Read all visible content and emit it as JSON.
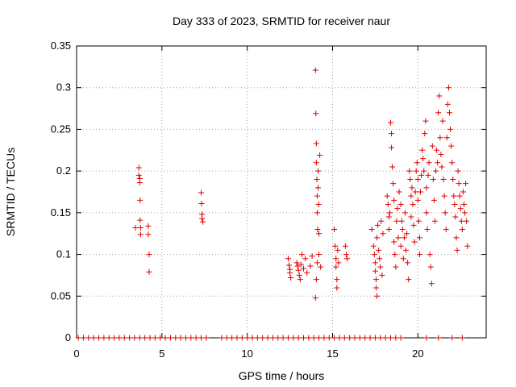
{
  "chart_data": {
    "type": "scatter",
    "title": "Day 333 of 2023, SRMTID for receiver naur",
    "xlabel": "GPS time / hours",
    "ylabel": "SRMTID / TECUs",
    "xlim": [
      0,
      24
    ],
    "ylim": [
      0,
      0.35
    ],
    "x_ticks": [
      0,
      5,
      10,
      15,
      20
    ],
    "x_tick_labels": [
      "0",
      "5",
      "10",
      "15",
      "20"
    ],
    "y_ticks": [
      0,
      0.05,
      0.1,
      0.15,
      0.2,
      0.25,
      0.3,
      0.35
    ],
    "y_tick_labels": [
      "0",
      "0.05",
      "0.1",
      "0.15",
      "0.2",
      "0.25",
      "0.3",
      "0.35"
    ],
    "grid": true,
    "marker": "+",
    "color": "#dd0000",
    "series": [
      {
        "name": "SRMTID",
        "points": [
          [
            3.45,
            0.132
          ],
          [
            3.65,
            0.204
          ],
          [
            3.65,
            0.195
          ],
          [
            3.7,
            0.191
          ],
          [
            3.7,
            0.186
          ],
          [
            3.72,
            0.165
          ],
          [
            3.72,
            0.141
          ],
          [
            3.75,
            0.132
          ],
          [
            3.75,
            0.124
          ],
          [
            4.2,
            0.134
          ],
          [
            4.2,
            0.124
          ],
          [
            4.25,
            0.1
          ],
          [
            4.25,
            0.079
          ],
          [
            7.3,
            0.174
          ],
          [
            7.32,
            0.161
          ],
          [
            7.35,
            0.148
          ],
          [
            7.35,
            0.143
          ],
          [
            7.4,
            0.139
          ],
          [
            12.4,
            0.095
          ],
          [
            12.45,
            0.087
          ],
          [
            12.5,
            0.082
          ],
          [
            12.5,
            0.078
          ],
          [
            12.55,
            0.072
          ],
          [
            12.9,
            0.09
          ],
          [
            12.95,
            0.086
          ],
          [
            13.0,
            0.081
          ],
          [
            13.05,
            0.075
          ],
          [
            13.1,
            0.07
          ],
          [
            13.15,
            0.088
          ],
          [
            13.2,
            0.1
          ],
          [
            13.3,
            0.083
          ],
          [
            13.4,
            0.095
          ],
          [
            13.5,
            0.078
          ],
          [
            13.7,
            0.086
          ],
          [
            13.8,
            0.098
          ],
          [
            14.0,
            0.321
          ],
          [
            14.02,
            0.269
          ],
          [
            14.05,
            0.233
          ],
          [
            14.05,
            0.21
          ],
          [
            14.08,
            0.19
          ],
          [
            14.1,
            0.17
          ],
          [
            14.1,
            0.15
          ],
          [
            14.12,
            0.13
          ],
          [
            14.15,
            0.2
          ],
          [
            14.15,
            0.18
          ],
          [
            14.18,
            0.16
          ],
          [
            14.2,
            0.125
          ],
          [
            14.2,
            0.1
          ],
          [
            14.1,
            0.09
          ],
          [
            14.05,
            0.07
          ],
          [
            14.0,
            0.048
          ],
          [
            14.25,
            0.219
          ],
          [
            14.3,
            0.085
          ],
          [
            15.1,
            0.13
          ],
          [
            15.15,
            0.11
          ],
          [
            15.2,
            0.095
          ],
          [
            15.2,
            0.085
          ],
          [
            15.25,
            0.07
          ],
          [
            15.25,
            0.06
          ],
          [
            15.3,
            0.105
          ],
          [
            15.35,
            0.09
          ],
          [
            15.75,
            0.11
          ],
          [
            15.8,
            0.1
          ],
          [
            15.85,
            0.095
          ],
          [
            17.3,
            0.13
          ],
          [
            17.4,
            0.11
          ],
          [
            17.45,
            0.1
          ],
          [
            17.5,
            0.09
          ],
          [
            17.5,
            0.08
          ],
          [
            17.55,
            0.07
          ],
          [
            17.55,
            0.06
          ],
          [
            17.6,
            0.05
          ],
          [
            17.6,
            0.12
          ],
          [
            17.65,
            0.135
          ],
          [
            17.7,
            0.105
          ],
          [
            17.75,
            0.095
          ],
          [
            17.8,
            0.085
          ],
          [
            17.85,
            0.14
          ],
          [
            17.9,
            0.075
          ],
          [
            17.95,
            0.125
          ],
          [
            18.2,
            0.17
          ],
          [
            18.25,
            0.16
          ],
          [
            18.3,
            0.145
          ],
          [
            18.3,
            0.13
          ],
          [
            18.35,
            0.15
          ],
          [
            18.4,
            0.258
          ],
          [
            18.45,
            0.245
          ],
          [
            18.45,
            0.228
          ],
          [
            18.5,
            0.205
          ],
          [
            18.55,
            0.185
          ],
          [
            18.6,
            0.165
          ],
          [
            18.6,
            0.115
          ],
          [
            18.65,
            0.1
          ],
          [
            18.7,
            0.085
          ],
          [
            18.75,
            0.14
          ],
          [
            18.8,
            0.155
          ],
          [
            18.85,
            0.12
          ],
          [
            18.9,
            0.175
          ],
          [
            19.0,
            0.16
          ],
          [
            19.0,
            0.11
          ],
          [
            19.05,
            0.14
          ],
          [
            19.1,
            0.13
          ],
          [
            19.15,
            0.095
          ],
          [
            19.2,
            0.12
          ],
          [
            19.25,
            0.15
          ],
          [
            19.3,
            0.105
          ],
          [
            19.35,
            0.125
          ],
          [
            19.4,
            0.09
          ],
          [
            19.45,
            0.07
          ],
          [
            19.5,
            0.2
          ],
          [
            19.55,
            0.19
          ],
          [
            19.6,
            0.17
          ],
          [
            19.6,
            0.145
          ],
          [
            19.65,
            0.18
          ],
          [
            19.7,
            0.16
          ],
          [
            19.75,
            0.135
          ],
          [
            19.8,
            0.115
          ],
          [
            19.85,
            0.175
          ],
          [
            19.9,
            0.2
          ],
          [
            19.95,
            0.21
          ],
          [
            20.0,
            0.19
          ],
          [
            20.0,
            0.165
          ],
          [
            20.05,
            0.14
          ],
          [
            20.1,
            0.12
          ],
          [
            20.1,
            0.1
          ],
          [
            20.15,
            0.175
          ],
          [
            20.2,
            0.195
          ],
          [
            20.25,
            0.225
          ],
          [
            20.3,
            0.215
          ],
          [
            20.35,
            0.2
          ],
          [
            20.4,
            0.245
          ],
          [
            20.45,
            0.26
          ],
          [
            20.5,
            0.18
          ],
          [
            20.5,
            0.15
          ],
          [
            20.55,
            0.13
          ],
          [
            20.6,
            0.195
          ],
          [
            20.65,
            0.21
          ],
          [
            20.7,
            0.1
          ],
          [
            20.75,
            0.085
          ],
          [
            20.8,
            0.065
          ],
          [
            20.85,
            0.23
          ],
          [
            20.9,
            0.19
          ],
          [
            20.95,
            0.165
          ],
          [
            21.0,
            0.14
          ],
          [
            21.05,
            0.2
          ],
          [
            21.1,
            0.225
          ],
          [
            21.15,
            0.21
          ],
          [
            21.2,
            0.27
          ],
          [
            21.25,
            0.29
          ],
          [
            21.3,
            0.24
          ],
          [
            21.35,
            0.22
          ],
          [
            21.4,
            0.205
          ],
          [
            21.45,
            0.26
          ],
          [
            21.5,
            0.19
          ],
          [
            21.55,
            0.17
          ],
          [
            21.6,
            0.15
          ],
          [
            21.65,
            0.13
          ],
          [
            21.7,
            0.24
          ],
          [
            21.75,
            0.28
          ],
          [
            21.8,
            0.3
          ],
          [
            21.85,
            0.27
          ],
          [
            21.9,
            0.25
          ],
          [
            21.95,
            0.23
          ],
          [
            22.0,
            0.21
          ],
          [
            22.05,
            0.19
          ],
          [
            22.1,
            0.17
          ],
          [
            22.15,
            0.16
          ],
          [
            22.2,
            0.145
          ],
          [
            22.25,
            0.12
          ],
          [
            22.3,
            0.105
          ],
          [
            22.35,
            0.2
          ],
          [
            22.4,
            0.185
          ],
          [
            22.45,
            0.17
          ],
          [
            22.5,
            0.155
          ],
          [
            22.55,
            0.14
          ],
          [
            22.6,
            0.13
          ],
          [
            22.65,
            0.175
          ],
          [
            22.7,
            0.16
          ],
          [
            22.75,
            0.15
          ],
          [
            22.8,
            0.185
          ],
          [
            22.85,
            0.14
          ],
          [
            22.9,
            0.11
          ],
          [
            0.1,
            0
          ],
          [
            0.4,
            0
          ],
          [
            0.7,
            0
          ],
          [
            1.0,
            0
          ],
          [
            1.3,
            0
          ],
          [
            1.6,
            0
          ],
          [
            1.9,
            0
          ],
          [
            2.2,
            0
          ],
          [
            2.5,
            0
          ],
          [
            2.8,
            0
          ],
          [
            3.1,
            0
          ],
          [
            3.4,
            0
          ],
          [
            3.7,
            0
          ],
          [
            4.0,
            0
          ],
          [
            4.3,
            0
          ],
          [
            4.6,
            0
          ],
          [
            4.9,
            0
          ],
          [
            5.2,
            0
          ],
          [
            5.5,
            0
          ],
          [
            5.8,
            0
          ],
          [
            6.1,
            0
          ],
          [
            6.4,
            0
          ],
          [
            6.7,
            0
          ],
          [
            7.0,
            0
          ],
          [
            7.3,
            0
          ],
          [
            7.6,
            0
          ],
          [
            8.5,
            0
          ],
          [
            8.8,
            0
          ],
          [
            9.1,
            0
          ],
          [
            9.4,
            0
          ],
          [
            9.7,
            0
          ],
          [
            10.0,
            0
          ],
          [
            10.3,
            0
          ],
          [
            10.6,
            0
          ],
          [
            10.9,
            0
          ],
          [
            11.2,
            0
          ],
          [
            11.5,
            0
          ],
          [
            11.8,
            0
          ],
          [
            12.1,
            0
          ],
          [
            12.4,
            0
          ],
          [
            12.7,
            0
          ],
          [
            13.0,
            0
          ],
          [
            13.3,
            0
          ],
          [
            13.6,
            0
          ],
          [
            13.9,
            0
          ],
          [
            14.2,
            0
          ],
          [
            14.5,
            0
          ],
          [
            14.8,
            0
          ],
          [
            15.1,
            0
          ],
          [
            15.4,
            0
          ],
          [
            15.7,
            0
          ],
          [
            16.0,
            0
          ],
          [
            16.3,
            0
          ],
          [
            16.6,
            0
          ],
          [
            16.9,
            0
          ],
          [
            17.2,
            0
          ],
          [
            17.5,
            0
          ],
          [
            17.8,
            0
          ],
          [
            18.1,
            0
          ],
          [
            18.4,
            0
          ],
          [
            18.7,
            0
          ],
          [
            19.0,
            0
          ],
          [
            20.5,
            0
          ],
          [
            21.2,
            0
          ],
          [
            22.0,
            0
          ],
          [
            22.6,
            0
          ]
        ]
      }
    ]
  }
}
